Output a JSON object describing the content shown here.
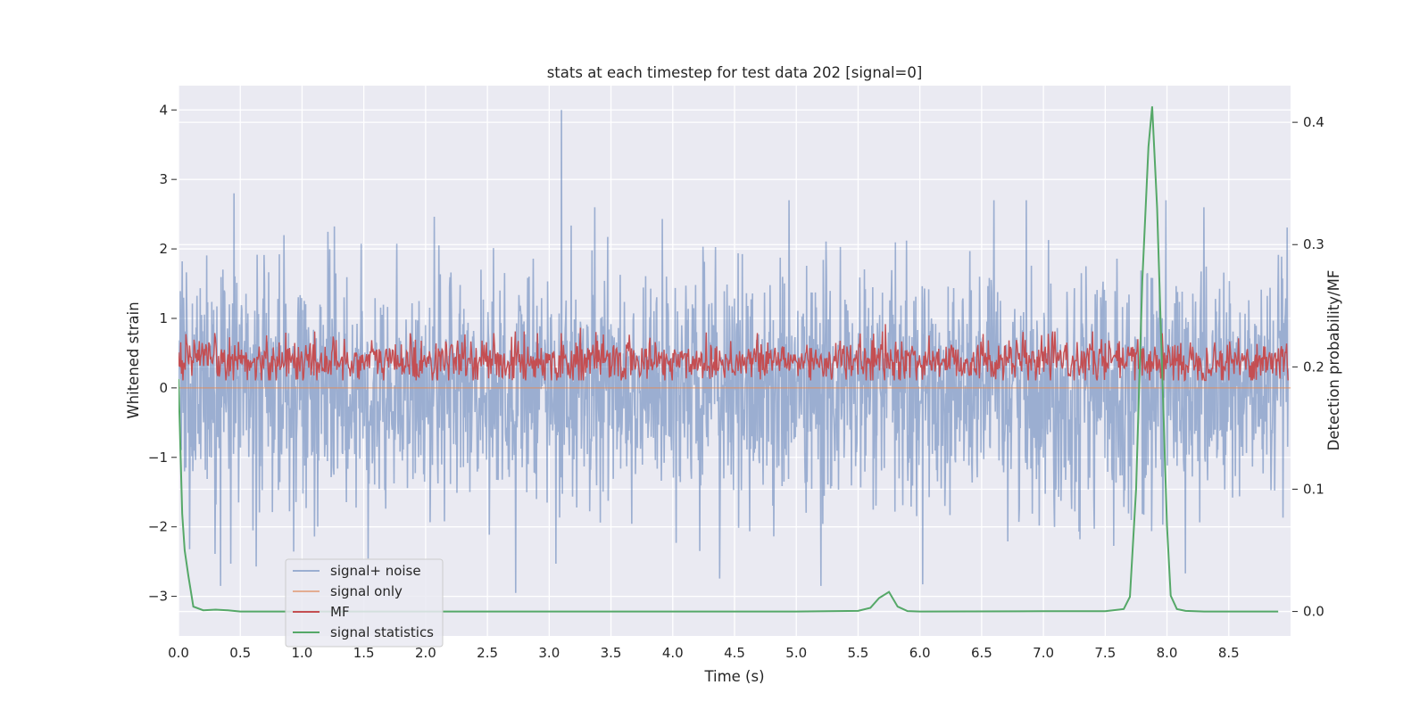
{
  "chart_data": {
    "type": "line",
    "title": "stats at each timestep for test data 202 [signal=0]",
    "xlabel": "Time (s)",
    "ylabel": "Whitened strain",
    "y2label": "Detection probability/MF",
    "xlim": [
      0.0,
      9.0
    ],
    "ylim": [
      -3.57,
      4.35
    ],
    "y2lim": [
      -0.02,
      0.43
    ],
    "xticks": [
      "0.0",
      "0.5",
      "1.0",
      "1.5",
      "2.0",
      "2.5",
      "3.0",
      "3.5",
      "4.0",
      "4.5",
      "5.0",
      "5.5",
      "6.0",
      "6.5",
      "7.0",
      "7.5",
      "8.0",
      "8.5"
    ],
    "yticks": [
      "−3",
      "−2",
      "−1",
      "0",
      "1",
      "2",
      "3",
      "4"
    ],
    "y2ticks": [
      "0.0",
      "0.1",
      "0.2",
      "0.3",
      "0.4"
    ],
    "grid": true,
    "legend_position": "lower-left",
    "series": [
      {
        "name": "signal+ noise",
        "axis": "left",
        "color": "#4c72b0",
        "style": "dense noise, approx. std 0.85, range about -2.9 to 4.0",
        "notable_peaks": [
          {
            "x": 3.1,
            "y": 4.0
          },
          {
            "x": 2.73,
            "y": -2.95
          },
          {
            "x": 5.2,
            "y": -2.85
          },
          {
            "x": 0.45,
            "y": 2.8
          },
          {
            "x": 8.3,
            "y": 2.6
          },
          {
            "x": 3.37,
            "y": 2.6
          }
        ]
      },
      {
        "name": "signal only",
        "axis": "left",
        "color": "#dd8452",
        "x": [
          0.0,
          9.0
        ],
        "y": [
          0.0,
          0.0
        ]
      },
      {
        "name": "MF",
        "axis": "right",
        "color": "#c44e52",
        "style": "noisy band, approx. 0.19 to 0.23, peaks near 0.235",
        "notable_peaks": [
          {
            "x": 5.72,
            "y": 0.235
          },
          {
            "x": 3.25,
            "y": 0.232
          },
          {
            "x": 0.87,
            "y": 0.228
          }
        ]
      },
      {
        "name": "signal statistics",
        "axis": "right",
        "color": "#55a868",
        "x": [
          0.0,
          0.03,
          0.05,
          0.08,
          0.12,
          0.2,
          0.3,
          0.4,
          0.5,
          1.0,
          2.0,
          3.0,
          4.0,
          5.0,
          5.5,
          5.6,
          5.67,
          5.75,
          5.82,
          5.9,
          6.0,
          7.0,
          7.5,
          7.65,
          7.7,
          7.75,
          7.8,
          7.85,
          7.88,
          7.92,
          7.96,
          8.0,
          8.03,
          8.08,
          8.15,
          8.3,
          8.9
        ],
        "y": [
          0.19,
          0.08,
          0.05,
          0.029,
          0.004,
          0.001,
          0.0015,
          0.001,
          0.0,
          0.0,
          0.0,
          0.0,
          0.0,
          0.0,
          0.0005,
          0.003,
          0.011,
          0.016,
          0.004,
          0.0003,
          0.0,
          0.0002,
          0.0002,
          0.002,
          0.012,
          0.1,
          0.27,
          0.38,
          0.413,
          0.33,
          0.2,
          0.07,
          0.013,
          0.002,
          0.0005,
          0.0,
          0.0
        ]
      }
    ]
  }
}
